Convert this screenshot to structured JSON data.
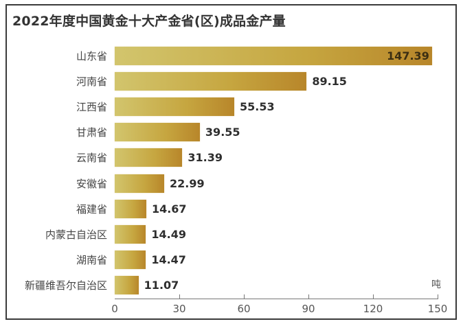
{
  "chart_data": {
    "type": "bar",
    "orientation": "horizontal",
    "title": "2022年度中国黄金十大产金省(区)成品金产量",
    "xlabel": "",
    "ylabel": "",
    "unit": "吨",
    "categories": [
      "山东省",
      "河南省",
      "江西省",
      "甘肃省",
      "云南省",
      "安徽省",
      "福建省",
      "内蒙古自治区",
      "湖南省",
      "新疆维吾尔自治区"
    ],
    "values": [
      147.39,
      89.15,
      55.53,
      39.55,
      31.39,
      22.99,
      14.67,
      14.49,
      14.47,
      11.07
    ],
    "value_labels": [
      "147.39",
      "89.15",
      "55.53",
      "39.55",
      "31.39",
      "22.99",
      "14.67",
      "14.49",
      "14.47",
      "11.07"
    ],
    "xlim": [
      0,
      150
    ],
    "xticks": [
      "0",
      "30",
      "60",
      "90",
      "120",
      "150"
    ],
    "grid": false,
    "legend": null,
    "bar_color_gradient": [
      "#d2c56d",
      "#b8862a"
    ]
  },
  "title": "2022年度中国黄金十大产金省(区)成品金产量",
  "axis": {
    "unit": "吨",
    "ticks": [
      "0",
      "30",
      "60",
      "90",
      "120",
      "150"
    ]
  },
  "rows": [
    {
      "label": "山东省",
      "value": "147.39"
    },
    {
      "label": "河南省",
      "value": "89.15"
    },
    {
      "label": "江西省",
      "value": "55.53"
    },
    {
      "label": "甘肃省",
      "value": "39.55"
    },
    {
      "label": "云南省",
      "value": "31.39"
    },
    {
      "label": "安徽省",
      "value": "22.99"
    },
    {
      "label": "福建省",
      "value": "14.67"
    },
    {
      "label": "内蒙古自治区",
      "value": "14.49"
    },
    {
      "label": "湖南省",
      "value": "14.47"
    },
    {
      "label": "新疆维吾尔自治区",
      "value": "11.07"
    }
  ]
}
